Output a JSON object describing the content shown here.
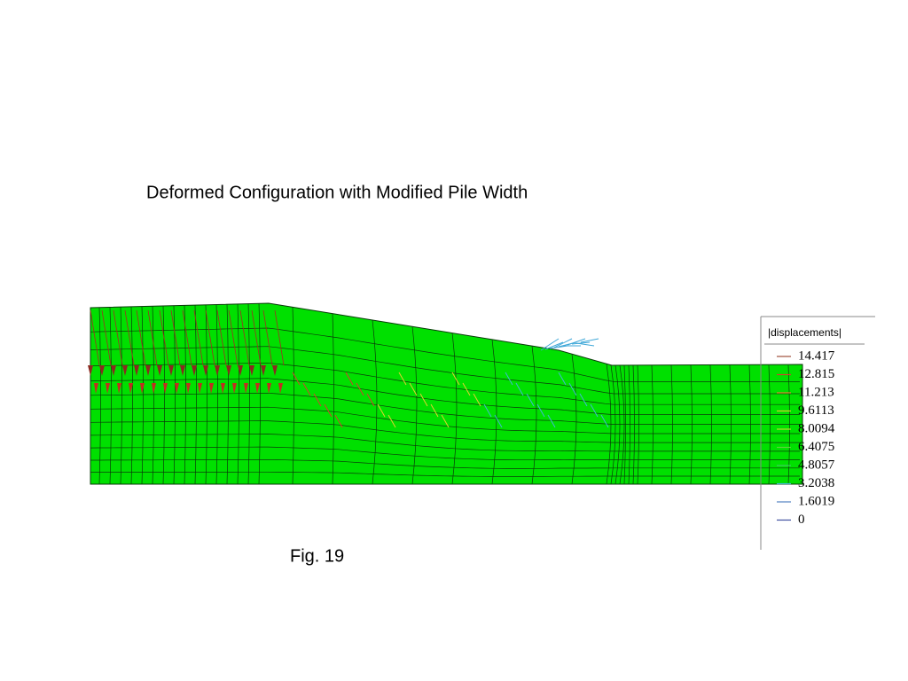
{
  "title": "Deformed Configuration with Modified Pile Width",
  "legend": {
    "title": "|displacements|",
    "entries": [
      {
        "label": "14.417",
        "color": "#a0503c"
      },
      {
        "label": "12.815",
        "color": "#d04030"
      },
      {
        "label": "11.213",
        "color": "#e08a30"
      },
      {
        "label": "9.6113",
        "color": "#d8c830"
      },
      {
        "label": "8.0094",
        "color": "#b8d830"
      },
      {
        "label": "6.4075",
        "color": "#60d040"
      },
      {
        "label": "4.8057",
        "color": "#40c860"
      },
      {
        "label": "3.2038",
        "color": "#40b8d0"
      },
      {
        "label": "1.6019",
        "color": "#5080c0"
      },
      {
        "label": "0",
        "color": "#4050a0"
      }
    ]
  },
  "caption": "Fig. 19"
}
